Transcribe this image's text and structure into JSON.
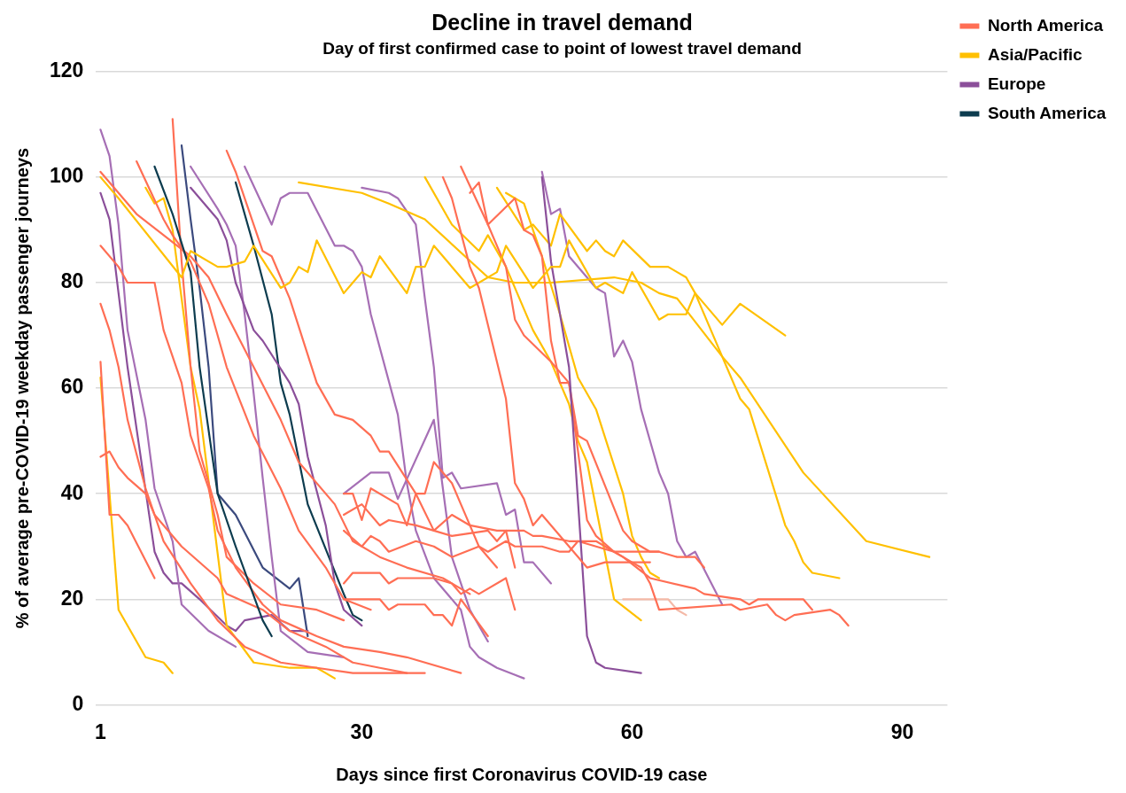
{
  "chart_data": {
    "type": "line",
    "title": "Decline in travel demand",
    "subtitle": "Day of first confirmed case to point of lowest travel demand",
    "xlabel": "Days since first Coronavirus COVID-19 case",
    "ylabel": "% of average pre-COVID-19 weekday passenger journeys",
    "xlim": [
      0.5,
      95
    ],
    "xticks": [
      1,
      30,
      60,
      90
    ],
    "ylim": [
      0,
      120
    ],
    "yticks": [
      0,
      20,
      40,
      60,
      80,
      100,
      120
    ],
    "grid": "y",
    "legend": "top right",
    "series": [
      {
        "name": "North America",
        "color": "#ff6e54",
        "x": [
          39,
          40,
          42,
          43,
          46,
          47,
          48,
          49,
          50,
          55,
          57,
          60,
          61,
          62,
          63,
          71,
          72,
          75,
          76,
          77,
          78,
          82,
          83,
          84
        ],
        "values": [
          100,
          96,
          83,
          79,
          58,
          42,
          39,
          34,
          36,
          26,
          27,
          27,
          26,
          23,
          18,
          19,
          18,
          19,
          17,
          16,
          17,
          18,
          17,
          15
        ]
      },
      {
        "name": "Asia/Pacific",
        "color": "#ffc000",
        "x": [
          1,
          3,
          10,
          11,
          14,
          15,
          17,
          18,
          21,
          22,
          23,
          24,
          25,
          28,
          29,
          30,
          31,
          32,
          35,
          36,
          37,
          38,
          42,
          45,
          46,
          49,
          51,
          52,
          53,
          56,
          57,
          58,
          59,
          60,
          63,
          64,
          66,
          67,
          70,
          72,
          77
        ],
        "values": [
          100,
          96,
          81,
          86,
          83,
          83,
          84,
          87,
          79,
          80,
          83,
          82,
          88,
          78,
          80,
          82,
          81,
          85,
          78,
          83,
          83,
          87,
          79,
          82,
          87,
          79,
          83,
          83,
          88,
          79,
          80,
          79,
          78,
          82,
          73,
          74,
          74,
          78,
          72,
          76,
          70
        ]
      },
      {
        "name": "Europe",
        "color": "#8b4f9a",
        "x": [
          50,
          51,
          53,
          55,
          56,
          57,
          61
        ],
        "values": [
          100,
          84,
          64,
          13,
          8,
          7,
          6
        ]
      },
      {
        "name": "South America",
        "color": "#0d3c4f",
        "x": [
          7,
          9,
          11,
          12,
          14,
          16,
          19,
          20
        ],
        "values": [
          102,
          93,
          82,
          64,
          40,
          30,
          16,
          13
        ]
      },
      {
        "color": "#ff6e54",
        "x": [
          41,
          44,
          46,
          47,
          48,
          51,
          53,
          54,
          55,
          59,
          60,
          62,
          63,
          65,
          67,
          68
        ],
        "values": [
          102,
          91,
          83,
          73,
          70,
          65,
          61,
          51,
          50,
          33,
          31,
          29,
          29,
          28,
          28,
          26
        ]
      },
      {
        "color": "#ff6e54",
        "x": [
          42,
          43,
          44,
          47,
          48,
          49,
          50,
          51,
          52,
          53,
          55,
          56,
          58,
          59,
          62,
          67,
          68,
          72,
          73,
          74,
          79,
          80
        ],
        "values": [
          97,
          99,
          91,
          96,
          90,
          89,
          85,
          69,
          61,
          61,
          35,
          32,
          29,
          28,
          24,
          22,
          21,
          20,
          19,
          20,
          20,
          18
        ]
      },
      {
        "color": "#ff6e54",
        "x": [
          15,
          16,
          19,
          20,
          22,
          25,
          27,
          29,
          31,
          32,
          33,
          36,
          38,
          40,
          44,
          45,
          46,
          47
        ],
        "values": [
          105,
          101,
          86,
          85,
          77,
          61,
          55,
          54,
          51,
          48,
          48,
          40,
          33,
          32,
          33,
          31,
          33,
          26
        ]
      },
      {
        "color": "#ff6e54",
        "x": [
          28,
          29,
          30,
          31,
          34,
          35,
          36,
          37,
          38,
          40,
          41,
          42,
          43,
          45
        ],
        "values": [
          40,
          40,
          35,
          41,
          38,
          34,
          40,
          40,
          46,
          42,
          38,
          34,
          30,
          26
        ]
      },
      {
        "color": "#ff6e54",
        "x": [
          28,
          30,
          32,
          33,
          36,
          38,
          40,
          42,
          45,
          48,
          49,
          50,
          53,
          54,
          56,
          58,
          63
        ],
        "values": [
          36,
          38,
          34,
          35,
          34,
          33,
          36,
          34,
          33,
          33,
          32,
          32,
          31,
          31,
          30,
          29,
          29
        ]
      },
      {
        "color": "#ff6e54",
        "x": [
          28,
          30,
          31,
          32,
          33,
          36,
          38,
          40,
          43,
          44,
          46,
          47,
          50,
          52,
          53,
          54,
          56,
          58,
          60,
          62
        ],
        "values": [
          33,
          30,
          32,
          31,
          29,
          31,
          30,
          28,
          30,
          29,
          31,
          30,
          30,
          29,
          29,
          31,
          31,
          29,
          27,
          27
        ]
      },
      {
        "color": "#ff6e54",
        "x": [
          28,
          29,
          32,
          33,
          34,
          38,
          40,
          41,
          42,
          43,
          46,
          47
        ],
        "values": [
          23,
          25,
          25,
          23,
          24,
          24,
          23,
          21,
          22,
          21,
          24,
          18
        ]
      },
      {
        "color": "#ff6e54",
        "x": [
          28,
          32,
          33,
          34,
          37,
          38,
          39,
          40,
          41,
          44
        ],
        "values": [
          20,
          20,
          18,
          19,
          19,
          17,
          17,
          15,
          20,
          13
        ]
      },
      {
        "color": "#ff6e54",
        "x": [
          1,
          2,
          3,
          4,
          6,
          7,
          10,
          14,
          15,
          19,
          22,
          26,
          29,
          32,
          35
        ],
        "values": [
          47,
          48,
          45,
          43,
          40,
          36,
          30,
          24,
          21,
          18,
          14,
          11,
          8,
          7,
          6
        ]
      },
      {
        "color": "#ff6e54",
        "x": [
          1,
          2,
          3,
          4,
          7
        ],
        "values": [
          65,
          36,
          36,
          34,
          24
        ]
      },
      {
        "color": "#ff6e54",
        "x": [
          1,
          2,
          3,
          4,
          6,
          8,
          11,
          14,
          17,
          21,
          25,
          29,
          34,
          37
        ],
        "values": [
          76,
          71,
          64,
          54,
          41,
          31,
          23,
          16,
          11,
          8,
          7,
          6,
          6,
          6
        ]
      },
      {
        "color": "#ff6e54",
        "x": [
          1,
          3,
          4,
          7,
          8,
          10,
          11,
          13,
          14,
          16,
          19,
          21,
          25,
          28,
          32,
          35,
          41
        ],
        "values": [
          87,
          83,
          80,
          80,
          71,
          61,
          51,
          41,
          33,
          26,
          19,
          16,
          13,
          11,
          10,
          9,
          6
        ]
      },
      {
        "color": "#ff6e54",
        "x": [
          9,
          10,
          11,
          12,
          14,
          15,
          18,
          21,
          25,
          28
        ],
        "values": [
          111,
          84,
          64,
          48,
          36,
          28,
          23,
          19,
          18,
          16
        ]
      },
      {
        "color": "#ff6e54",
        "x": [
          5,
          8,
          9,
          11,
          13,
          15,
          18,
          21,
          23,
          26,
          28,
          31
        ],
        "values": [
          103,
          92,
          89,
          84,
          76,
          64,
          51,
          41,
          33,
          26,
          20,
          18
        ]
      },
      {
        "color": "#ff6e54",
        "x": [
          1,
          5,
          8,
          11,
          13,
          15,
          18,
          21,
          23,
          27,
          29,
          32,
          35,
          39,
          42
        ],
        "values": [
          101,
          93,
          89,
          85,
          81,
          74,
          64,
          54,
          46,
          38,
          31,
          28,
          26,
          24,
          21
        ]
      },
      {
        "color": "#f4b9a7",
        "x": [
          59,
          60,
          62,
          64,
          65,
          66
        ],
        "values": [
          20,
          20,
          20,
          20,
          18,
          17
        ]
      },
      {
        "color": "#ffc000",
        "x": [
          6,
          7,
          8,
          9,
          11,
          12,
          15,
          18,
          22,
          25,
          26,
          27
        ],
        "values": [
          98,
          95,
          96,
          90,
          64,
          56,
          15,
          8,
          7,
          7,
          6,
          5
        ]
      },
      {
        "color": "#ffc000",
        "x": [
          1,
          3,
          6,
          8,
          9
        ],
        "values": [
          62,
          18,
          9,
          8,
          6
        ]
      },
      {
        "color": "#ffc000",
        "x": [
          23,
          30,
          33,
          37,
          44,
          47,
          51,
          58,
          61,
          63,
          65,
          70,
          72,
          79,
          86,
          93
        ],
        "values": [
          99,
          97,
          95,
          92,
          81,
          80,
          80,
          81,
          80,
          78,
          77,
          66,
          62,
          44,
          31,
          28
        ]
      },
      {
        "color": "#ffc000",
        "x": [
          37,
          40,
          43,
          44,
          46,
          49,
          51,
          53,
          54,
          55,
          58,
          61
        ],
        "values": [
          100,
          91,
          86,
          89,
          83,
          71,
          65,
          57,
          50,
          46,
          20,
          16
        ]
      },
      {
        "color": "#ffc000",
        "x": [
          45,
          48,
          49,
          50,
          51,
          52,
          55,
          56,
          57,
          58,
          59,
          62,
          63,
          64,
          65,
          66,
          67,
          70,
          72,
          73,
          77,
          78,
          79,
          80,
          83
        ],
        "values": [
          98,
          90,
          91,
          89,
          87,
          93,
          86,
          88,
          86,
          85,
          88,
          83,
          83,
          83,
          82,
          81,
          78,
          66,
          58,
          56,
          34,
          31,
          27,
          25,
          24
        ]
      },
      {
        "color": "#ffc000",
        "x": [
          46,
          47,
          48,
          50,
          52,
          54,
          56,
          59,
          60,
          61,
          62,
          63
        ],
        "values": [
          97,
          96,
          95,
          85,
          74,
          62,
          56,
          40,
          32,
          28,
          25,
          24
        ]
      },
      {
        "color": "#a66fb5",
        "x": [
          50,
          51,
          52,
          53,
          56,
          57,
          58,
          59,
          60,
          61,
          63,
          64,
          65,
          66,
          67,
          70
        ],
        "values": [
          101,
          93,
          94,
          85,
          79,
          78,
          66,
          69,
          65,
          56,
          44,
          40,
          31,
          28,
          29,
          19
        ]
      },
      {
        "color": "#a66fb5",
        "x": [
          30,
          33,
          34,
          36,
          37,
          38,
          39,
          40,
          41,
          45,
          46,
          47,
          48,
          49,
          51
        ],
        "values": [
          98,
          97,
          96,
          91,
          77,
          64,
          43,
          44,
          41,
          42,
          36,
          37,
          27,
          27,
          23
        ]
      },
      {
        "color": "#a66fb5",
        "x": [
          17,
          20,
          21,
          22,
          24,
          27,
          28,
          29,
          30,
          31,
          34,
          35,
          36,
          38,
          41,
          42,
          43,
          45,
          48
        ],
        "values": [
          102,
          91,
          96,
          97,
          97,
          87,
          87,
          86,
          83,
          74,
          55,
          42,
          33,
          24,
          18,
          11,
          9,
          7,
          5
        ]
      },
      {
        "color": "#a66fb5",
        "x": [
          1,
          2,
          3,
          4,
          6,
          7,
          9,
          10,
          13,
          16
        ],
        "values": [
          109,
          104,
          91,
          71,
          54,
          41,
          31,
          19,
          14,
          11
        ]
      },
      {
        "color": "#8b4f9a",
        "x": [
          1,
          2,
          4,
          7,
          8,
          9,
          10,
          12,
          15,
          16,
          17,
          20,
          22,
          24
        ],
        "values": [
          97,
          92,
          64,
          29,
          25,
          23,
          23,
          20,
          15,
          14,
          16,
          17,
          14,
          14
        ]
      },
      {
        "color": "#a66fb5",
        "x": [
          28,
          31,
          33,
          34,
          38,
          39,
          40,
          42,
          44
        ],
        "values": [
          40,
          44,
          44,
          39,
          54,
          41,
          28,
          18,
          12
        ]
      },
      {
        "color": "#8b4f9a",
        "x": [
          11,
          14,
          15,
          16,
          18,
          19,
          22,
          23,
          24,
          26,
          27,
          28,
          30
        ],
        "values": [
          98,
          92,
          88,
          80,
          71,
          69,
          61,
          57,
          47,
          34,
          23,
          18,
          15
        ]
      },
      {
        "color": "#a66fb5",
        "x": [
          11,
          14,
          15,
          16,
          17,
          18,
          19,
          20,
          21,
          24,
          28
        ],
        "values": [
          102,
          94,
          91,
          87,
          74,
          59,
          43,
          28,
          14,
          10,
          9
        ]
      },
      {
        "color": "#0d3c4f",
        "x": [
          16,
          18,
          20,
          21,
          22,
          24,
          28,
          29,
          30
        ],
        "values": [
          99,
          87,
          74,
          61,
          55,
          38,
          21,
          17,
          16
        ]
      },
      {
        "color": "#3b4a7e",
        "x": [
          10,
          11,
          12,
          13,
          14,
          16,
          19,
          22,
          23,
          24
        ],
        "values": [
          106,
          92,
          79,
          64,
          40,
          36,
          26,
          22,
          24,
          13
        ]
      }
    ]
  }
}
